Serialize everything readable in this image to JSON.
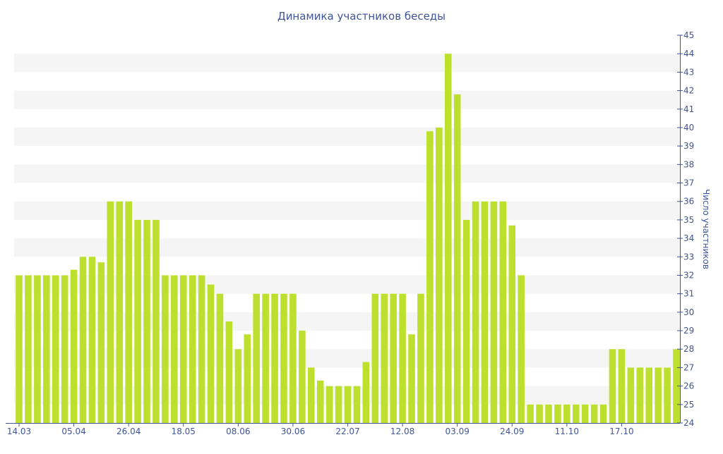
{
  "chart_data": {
    "type": "bar",
    "title": "Динамика участников беседы",
    "ylabel": "Число участников",
    "xlabel": "",
    "ylim": [
      24,
      45
    ],
    "y_ticks": [
      24,
      25,
      26,
      27,
      28,
      29,
      30,
      31,
      32,
      33,
      34,
      35,
      36,
      37,
      38,
      39,
      40,
      41,
      42,
      43,
      44,
      45
    ],
    "x_tick_labels": [
      "14.03",
      "05.04",
      "26.04",
      "18.05",
      "08.06",
      "30.06",
      "22.07",
      "12.08",
      "03.09",
      "24.09",
      "11.10",
      "17.10"
    ],
    "x_tick_positions": [
      0,
      6,
      12,
      18,
      24,
      30,
      36,
      42,
      48,
      54,
      60,
      66
    ],
    "values": [
      32,
      32,
      32,
      32,
      32,
      32,
      32.3,
      33,
      33,
      32.7,
      36,
      36,
      36,
      35,
      35,
      35,
      32,
      32,
      32,
      32,
      32,
      31.5,
      31,
      29.5,
      28,
      28.8,
      31,
      31,
      31,
      31,
      31,
      29,
      27,
      26.3,
      26,
      26,
      26,
      26,
      27.3,
      31,
      31,
      31,
      31,
      28.8,
      31,
      39.8,
      40,
      44,
      41.8,
      35,
      36,
      36,
      36,
      36,
      34.7,
      32,
      25,
      25,
      25,
      25,
      25,
      25,
      25,
      25,
      25,
      28,
      28,
      27,
      27,
      27,
      27,
      27,
      28
    ],
    "bar_color": "#bde02e",
    "band_color": "#f5f5f5",
    "text_color": "#3f5597",
    "grid": "alternating horizontal bands",
    "y_axis_side": "right"
  }
}
